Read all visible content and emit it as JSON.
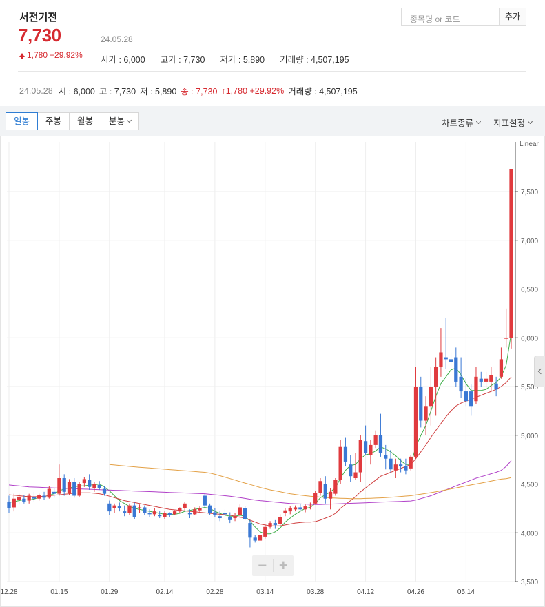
{
  "header": {
    "stock_name": "서전기전",
    "price": "7,730",
    "date": "24.05.28",
    "change_amount": "1,780",
    "change_pct": "+29.92%",
    "open_label": "시가 : 6,000",
    "high_label": "고가 : 7,730",
    "low_label": "저가 : 5,890",
    "volume_label": "거래량 : 4,507,195"
  },
  "search": {
    "placeholder": "종목명 or 코드",
    "add_label": "추가"
  },
  "summary": {
    "date": "24.05.28",
    "open": "시 : 6,000",
    "high": "고 : 7,730",
    "low": "저 : 5,890",
    "close": "종 : 7,730",
    "change": "↑1,780 +29.92%",
    "volume": "거래량 : 4,507,195"
  },
  "toolbar": {
    "tabs": [
      "일봉",
      "주봉",
      "월봉",
      "분봉"
    ],
    "chart_type_label": "차트종류",
    "indicator_label": "지표설정"
  },
  "colors": {
    "up": "#e03a3e",
    "down": "#3a78d4",
    "ma5": "#3fae49",
    "ma20": "#d04040",
    "ma60": "#b040c8",
    "ma120": "#e3a045",
    "accent": "#2f7dd3"
  },
  "chart_data": {
    "type": "candlestick",
    "scale_label": "Linear",
    "ylim": [
      3500,
      7800
    ],
    "y_ticks": [
      "7,500",
      "7,000",
      "6,500",
      "6,000",
      "5,500",
      "5,000",
      "4,500",
      "4,000",
      "3,500"
    ],
    "y_tick_values": [
      7500,
      7000,
      6500,
      6000,
      5500,
      5000,
      4500,
      4000,
      3500
    ],
    "x_ticks": [
      {
        "label": "12.28",
        "index": 0
      },
      {
        "label": "01.15",
        "index": 10
      },
      {
        "label": "01.29",
        "index": 20
      },
      {
        "label": "02.14",
        "index": 31
      },
      {
        "label": "02.28",
        "index": 41
      },
      {
        "label": "03.14",
        "index": 51
      },
      {
        "label": "03.28",
        "index": 61
      },
      {
        "label": "04.12",
        "index": 71
      },
      {
        "label": "04.26",
        "index": 81
      },
      {
        "label": "05.14",
        "index": 91
      }
    ],
    "candles": [
      [
        4320,
        4380,
        4200,
        4250
      ],
      [
        4260,
        4400,
        4220,
        4350
      ],
      [
        4340,
        4400,
        4290,
        4370
      ],
      [
        4350,
        4390,
        4300,
        4320
      ],
      [
        4330,
        4400,
        4300,
        4380
      ],
      [
        4370,
        4420,
        4320,
        4350
      ],
      [
        4350,
        4400,
        4330,
        4390
      ],
      [
        4380,
        4420,
        4340,
        4360
      ],
      [
        4360,
        4480,
        4350,
        4450
      ],
      [
        4420,
        4460,
        4360,
        4400
      ],
      [
        4400,
        4700,
        4380,
        4560
      ],
      [
        4560,
        4600,
        4380,
        4420
      ],
      [
        4410,
        4550,
        4390,
        4520
      ],
      [
        4520,
        4560,
        4360,
        4380
      ],
      [
        4380,
        4520,
        4370,
        4500
      ],
      [
        4510,
        4570,
        4470,
        4550
      ],
      [
        4540,
        4600,
        4440,
        4470
      ],
      [
        4460,
        4520,
        4420,
        4500
      ],
      [
        4490,
        4530,
        4440,
        4460
      ],
      [
        4450,
        4480,
        4380,
        4400
      ],
      [
        4300,
        4330,
        4180,
        4220
      ],
      [
        4250,
        4300,
        4200,
        4280
      ],
      [
        4270,
        4310,
        4220,
        4250
      ],
      [
        4220,
        4280,
        4170,
        4200
      ],
      [
        4200,
        4300,
        4180,
        4280
      ],
      [
        4280,
        4310,
        4140,
        4160
      ],
      [
        4250,
        4290,
        4200,
        4260
      ],
      [
        4260,
        4280,
        4180,
        4200
      ],
      [
        4200,
        4240,
        4160,
        4190
      ],
      [
        4190,
        4250,
        4170,
        4220
      ],
      [
        4180,
        4220,
        4150,
        4170
      ],
      [
        4160,
        4220,
        4140,
        4200
      ],
      [
        4200,
        4210,
        4160,
        4180
      ],
      [
        4190,
        4230,
        4180,
        4220
      ],
      [
        4220,
        4260,
        4200,
        4250
      ],
      [
        4250,
        4320,
        4230,
        4300
      ],
      [
        4200,
        4240,
        4150,
        4190
      ],
      [
        4190,
        4260,
        4180,
        4240
      ],
      [
        4230,
        4270,
        4210,
        4250
      ],
      [
        4380,
        4400,
        4250,
        4280
      ],
      [
        4280,
        4300,
        4180,
        4200
      ],
      [
        4210,
        4250,
        4160,
        4180
      ],
      [
        4170,
        4220,
        4120,
        4150
      ],
      [
        4200,
        4240,
        4160,
        4190
      ],
      [
        4160,
        4210,
        4100,
        4130
      ],
      [
        4150,
        4200,
        4120,
        4170
      ],
      [
        4180,
        4290,
        4150,
        4260
      ],
      [
        4250,
        4270,
        4130,
        4140
      ],
      [
        4100,
        4130,
        3850,
        3950
      ],
      [
        3950,
        3980,
        3900,
        3920
      ],
      [
        3920,
        4030,
        3900,
        3980
      ],
      [
        3960,
        4090,
        3940,
        4060
      ],
      [
        4060,
        4120,
        4040,
        4100
      ],
      [
        4100,
        4130,
        4040,
        4080
      ],
      [
        4090,
        4190,
        4070,
        4160
      ],
      [
        4200,
        4250,
        4170,
        4230
      ],
      [
        4220,
        4270,
        4190,
        4250
      ],
      [
        4240,
        4280,
        4220,
        4260
      ],
      [
        4260,
        4300,
        4230,
        4240
      ],
      [
        4240,
        4290,
        4210,
        4270
      ],
      [
        4270,
        4310,
        4240,
        4280
      ],
      [
        4300,
        4430,
        4290,
        4410
      ],
      [
        4410,
        4560,
        4380,
        4530
      ],
      [
        4500,
        4580,
        4300,
        4350
      ],
      [
        4350,
        4460,
        4240,
        4420
      ],
      [
        4400,
        4560,
        4380,
        4540
      ],
      [
        4540,
        4950,
        4500,
        4880
      ],
      [
        4880,
        4980,
        4680,
        4730
      ],
      [
        4700,
        4800,
        4520,
        4580
      ],
      [
        4560,
        4820,
        4540,
        4620
      ],
      [
        4620,
        5000,
        4520,
        4950
      ],
      [
        4940,
        5100,
        4800,
        4820
      ],
      [
        4800,
        4950,
        4700,
        4900
      ],
      [
        4900,
        5050,
        4870,
        5000
      ],
      [
        5000,
        5220,
        4780,
        4820
      ],
      [
        4800,
        4900,
        4650,
        4760
      ],
      [
        4760,
        4850,
        4620,
        4650
      ],
      [
        4640,
        4760,
        4560,
        4700
      ],
      [
        4700,
        4760,
        4620,
        4680
      ],
      [
        4680,
        4760,
        4600,
        4640
      ],
      [
        4660,
        4800,
        4640,
        4780
      ],
      [
        4780,
        5700,
        4760,
        5500
      ],
      [
        5500,
        5600,
        5080,
        5150
      ],
      [
        5150,
        5400,
        5000,
        5300
      ],
      [
        5300,
        5700,
        5100,
        5500
      ],
      [
        5500,
        5800,
        5200,
        5700
      ],
      [
        5700,
        6100,
        5600,
        5850
      ],
      [
        5800,
        6200,
        5680,
        5780
      ],
      [
        5780,
        5850,
        5700,
        5750
      ],
      [
        5800,
        5900,
        5500,
        5550
      ],
      [
        5600,
        5800,
        5380,
        5450
      ],
      [
        5450,
        5580,
        5300,
        5350
      ],
      [
        5450,
        5520,
        5200,
        5300
      ],
      [
        5350,
        5700,
        5320,
        5600
      ],
      [
        5580,
        5650,
        5500,
        5550
      ],
      [
        5550,
        5650,
        5480,
        5580
      ],
      [
        5550,
        5700,
        5450,
        5620
      ],
      [
        5530,
        5600,
        5400,
        5470
      ],
      [
        5600,
        5900,
        5580,
        5780
      ],
      [
        5990,
        6300,
        5900,
        6000
      ],
      [
        6000,
        7730,
        5890,
        7730
      ]
    ],
    "moving_averages": [
      {
        "name": "ma5",
        "color_key": "ma5",
        "values": [
          4310,
          4320,
          4330,
          4340,
          4335,
          4345,
          4365,
          4370,
          4385,
          4400,
          4430,
          4450,
          4460,
          4470,
          4480,
          4480,
          4490,
          4490,
          4500,
          4470,
          4430,
          4380,
          4330,
          4300,
          4270,
          4250,
          4240,
          4230,
          4220,
          4210,
          4200,
          4190,
          4190,
          4190,
          4200,
          4220,
          4230,
          4240,
          4250,
          4260,
          4250,
          4220,
          4200,
          4180,
          4170,
          4170,
          4180,
          4170,
          4120,
          4060,
          4010,
          3990,
          3990,
          4010,
          4050,
          4110,
          4150,
          4190,
          4220,
          4250,
          4260,
          4300,
          4360,
          4390,
          4420,
          4460,
          4560,
          4640,
          4690,
          4700,
          4760,
          4800,
          4810,
          4840,
          4880,
          4860,
          4830,
          4790,
          4740,
          4700,
          4700,
          4880,
          5000,
          5100,
          5250,
          5400,
          5530,
          5600,
          5670,
          5690,
          5620,
          5530,
          5460,
          5460,
          5460,
          5470,
          5510,
          5540,
          5600,
          5720,
          6050
        ]
      },
      {
        "name": "ma20",
        "color_key": "ma20",
        "values": [
          4390,
          4385,
          4380,
          4375,
          4370,
          4370,
          4370,
          4375,
          4380,
          4385,
          4390,
          4395,
          4400,
          4405,
          4410,
          4410,
          4410,
          4405,
          4400,
          4390,
          4375,
          4360,
          4345,
          4330,
          4320,
          4310,
          4300,
          4290,
          4280,
          4270,
          4260,
          4250,
          4240,
          4235,
          4230,
          4225,
          4220,
          4215,
          4210,
          4205,
          4200,
          4195,
          4190,
          4185,
          4180,
          4170,
          4160,
          4150,
          4130,
          4110,
          4090,
          4080,
          4070,
          4070,
          4070,
          4080,
          4090,
          4100,
          4105,
          4110,
          4110,
          4115,
          4130,
          4150,
          4170,
          4200,
          4250,
          4290,
          4330,
          4370,
          4420,
          4460,
          4500,
          4540,
          4580,
          4600,
          4620,
          4640,
          4660,
          4680,
          4700,
          4760,
          4830,
          4900,
          4980,
          5050,
          5120,
          5190,
          5250,
          5300,
          5330,
          5350,
          5370,
          5390,
          5410,
          5430,
          5450,
          5470,
          5500,
          5540,
          5600
        ]
      },
      {
        "name": "ma60",
        "color_key": "ma60",
        "values": [
          4490,
          4485,
          4480,
          4475,
          4470,
          4468,
          4466,
          4464,
          4462,
          4460,
          4458,
          4456,
          4454,
          4452,
          4450,
          4448,
          4446,
          4444,
          4442,
          4440,
          4438,
          4436,
          4434,
          4432,
          4430,
          4428,
          4426,
          4424,
          4422,
          4420,
          4418,
          4416,
          4414,
          4412,
          4410,
          4408,
          4406,
          4404,
          4402,
          4400,
          4395,
          4390,
          4385,
          4380,
          4375,
          4368,
          4360,
          4352,
          4344,
          4336,
          4330,
          4325,
          4320,
          4315,
          4310,
          4305,
          4300,
          4298,
          4296,
          4294,
          4292,
          4290,
          4290,
          4292,
          4294,
          4296,
          4298,
          4300,
          4302,
          4304,
          4306,
          4308,
          4310,
          4312,
          4314,
          4316,
          4318,
          4320,
          4322,
          4324,
          4326,
          4335,
          4350,
          4365,
          4380,
          4400,
          4420,
          4440,
          4460,
          4480,
          4500,
          4520,
          4540,
          4560,
          4575,
          4590,
          4605,
          4620,
          4640,
          4680,
          4740
        ]
      },
      {
        "name": "ma120",
        "color_key": "ma120",
        "start": 20,
        "values": [
          4700,
          4695,
          4690,
          4685,
          4680,
          4676,
          4672,
          4668,
          4664,
          4660,
          4656,
          4652,
          4648,
          4644,
          4640,
          4636,
          4632,
          4628,
          4624,
          4620,
          4612,
          4600,
          4585,
          4570,
          4555,
          4540,
          4525,
          4510,
          4495,
          4480,
          4465,
          4452,
          4440,
          4430,
          4420,
          4410,
          4400,
          4393,
          4386,
          4380,
          4374,
          4370,
          4366,
          4362,
          4358,
          4356,
          4354,
          4352,
          4350,
          4350,
          4350,
          4352,
          4354,
          4356,
          4358,
          4360,
          4364,
          4368,
          4372,
          4376,
          4380,
          4388,
          4396,
          4404,
          4412,
          4420,
          4430,
          4440,
          4450,
          4460,
          4470,
          4480,
          4490,
          4500,
          4510,
          4520,
          4530,
          4540,
          4550,
          4555,
          4565
        ]
      }
    ]
  }
}
